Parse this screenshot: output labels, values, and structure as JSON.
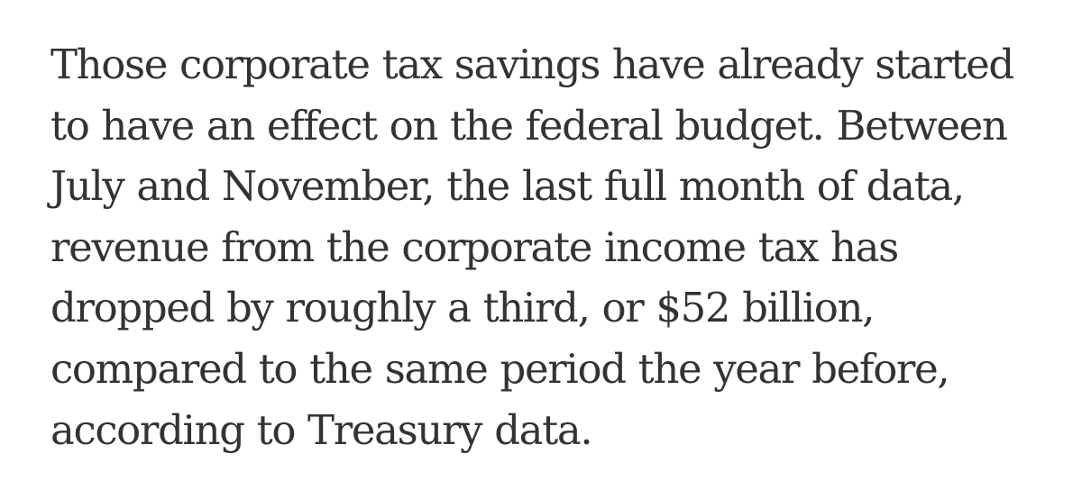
{
  "article": {
    "paragraph_lines": [
      "Those corporate tax savings have already started",
      "to have an effect on the federal budget. Between",
      "July and November, the last full month of data,",
      "revenue from the corporate income tax has",
      "dropped by roughly a third, or $52 billion,",
      "compared to the same period the year before,",
      "according to Treasury data."
    ]
  },
  "colors": {
    "background": "#ffffff",
    "text": "#333333"
  }
}
